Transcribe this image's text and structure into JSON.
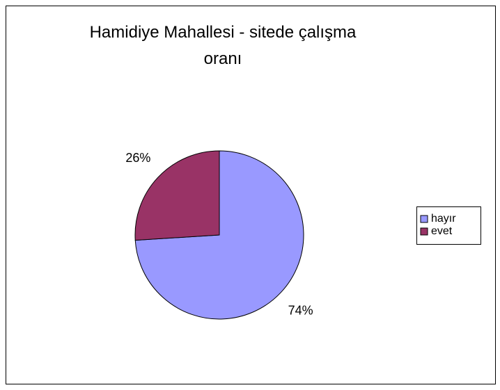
{
  "chart_data": {
    "type": "pie",
    "title": "Hamidiye Mahallesi - sitede çalışma oranı",
    "categories": [
      "hayır",
      "evet"
    ],
    "values": [
      74,
      26
    ],
    "value_labels": [
      "74%",
      "26%"
    ],
    "colors": [
      "#9999ff",
      "#993366"
    ],
    "legend": "right"
  }
}
